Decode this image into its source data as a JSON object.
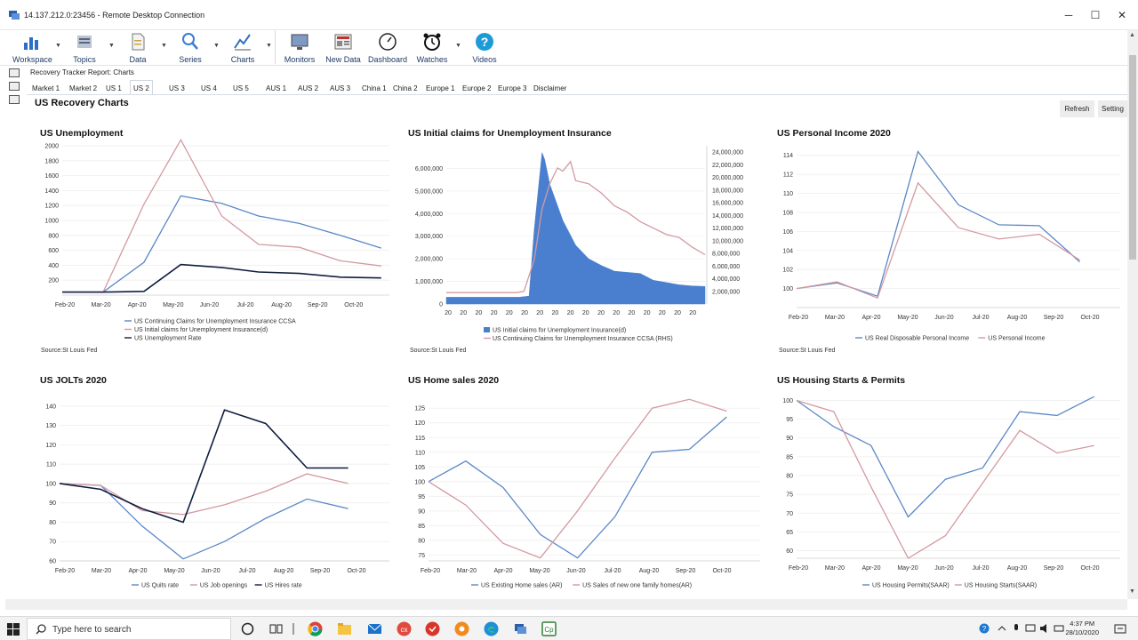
{
  "window": {
    "title": "14.137.212.0:23456 - Remote Desktop Connection",
    "min": "─",
    "max": "☐",
    "close": "✕"
  },
  "ribbon": [
    {
      "label": "Workspace",
      "icon": "workspace-bar-chart-icon",
      "caret": true
    },
    {
      "label": "Topics",
      "icon": "topics-icon",
      "caret": true
    },
    {
      "label": "Data",
      "icon": "data-document-icon",
      "caret": true
    },
    {
      "label": "Series",
      "icon": "series-search-icon",
      "caret": true
    },
    {
      "label": "Charts",
      "icon": "charts-line-icon",
      "caret": true
    },
    {
      "label": "Monitors",
      "icon": "monitors-icon",
      "caret": false
    },
    {
      "label": "New Data",
      "icon": "news-icon",
      "caret": false
    },
    {
      "label": "Dashboard",
      "icon": "dashboard-gauge-icon",
      "caret": false
    },
    {
      "label": "Watches",
      "icon": "alarm-clock-icon",
      "caret": true
    },
    {
      "label": "Videos",
      "icon": "help-question-icon",
      "caret": false
    }
  ],
  "report_title": "Recovery Tracker Report: Charts",
  "tabs": [
    "Market 1",
    "Market 2",
    "US 1",
    "US 2",
    "US 3",
    "US 4",
    "US 5",
    "AUS 1",
    "AUS 2",
    "AUS 3",
    "China 1",
    "China 2",
    "Europe 1",
    "Europe 2",
    "Europe 3",
    "Disclaimer"
  ],
  "active_tab": "US 2",
  "page_title": "US Recovery Charts",
  "buttons": {
    "refresh": "Refresh",
    "settings": "Setting"
  },
  "colors": {
    "blue": "#5b87c6",
    "pink": "#d39aa0",
    "navy": "#0f1d3f",
    "fill": "#4a7fcf"
  },
  "taskbar": {
    "search_placeholder": "Type here to search",
    "time": "4:37 PM",
    "date": "28/10/2020"
  },
  "chart_data": [
    {
      "id": "unemployment",
      "type": "line",
      "title": "US Unemployment",
      "source": "Source:St Louis Fed",
      "x": [
        "Feb-20",
        "Mar-20",
        "Apr-20",
        "May-20",
        "Jun-20",
        "Jul-20",
        "Aug-20",
        "Sep-20",
        "Oct-20"
      ],
      "y_ticks": [
        200,
        400,
        600,
        800,
        1000,
        1200,
        1400,
        1600,
        1800,
        2000
      ],
      "ylim": [
        0,
        2000
      ],
      "series": [
        {
          "name": "US Continuing Claims for Unemployment Insurance CCSA",
          "color": "#5b87c6",
          "x": [
            0,
            1,
            2,
            2.9,
            3.9,
            4.8,
            5.8,
            6.8,
            7.8
          ],
          "values": [
            40,
            40,
            440,
            1330,
            1230,
            1060,
            960,
            800,
            630
          ]
        },
        {
          "name": "US Initial claims for Unemployment Insurance(d)",
          "color": "#d39aa0",
          "x": [
            0,
            1,
            2,
            2.9,
            3.9,
            4.8,
            5.8,
            6.8,
            7.8
          ],
          "values": [
            40,
            40,
            1220,
            2080,
            1060,
            680,
            640,
            460,
            390
          ]
        },
        {
          "name": "US Unemployment Rate",
          "color": "#0f1d3f",
          "x": [
            0,
            1,
            2,
            2.9,
            3.9,
            4.8,
            5.8,
            6.8,
            7.8
          ],
          "values": [
            40,
            40,
            50,
            410,
            370,
            310,
            290,
            240,
            230
          ]
        }
      ]
    },
    {
      "id": "initial_claims",
      "type": "area",
      "title": "US Initial claims for Unemployment Insurance",
      "source": "Source:St Louis Fed",
      "x_ticks": [
        "20",
        "20",
        "20",
        "20",
        "20",
        "20",
        "20",
        "20",
        "20",
        "20",
        "20",
        "20",
        "20",
        "20",
        "20",
        "20",
        "20"
      ],
      "y_ticks": [
        "0",
        "1,000,000",
        "2,000,000",
        "3,000,000",
        "4,000,000",
        "5,000,000",
        "6,000,000"
      ],
      "ylim": [
        0,
        7000000
      ],
      "y2_ticks": [
        "2,000,000",
        "4,000,000",
        "6,000,000",
        "8,000,000",
        "10,000,000",
        "12,000,000",
        "14,000,000",
        "16,000,000",
        "18,000,000",
        "20,000,000",
        "22,000,000",
        "24,000,000"
      ],
      "y2lim": [
        0,
        25000000
      ],
      "series": [
        {
          "name": "US Initial claims for Unemployment Insurance(d)",
          "color": "#4a7fcf",
          "axis": "left",
          "x": [
            0,
            0.28,
            0.32,
            0.34,
            0.37,
            0.38,
            0.4,
            0.45,
            0.5,
            0.55,
            0.6,
            0.65,
            0.7,
            0.75,
            0.8,
            0.85,
            0.9,
            0.95,
            1
          ],
          "values": [
            300000,
            300000,
            350000,
            3300000,
            6700000,
            6400000,
            5300000,
            3700000,
            2600000,
            2000000,
            1700000,
            1450000,
            1400000,
            1350000,
            1050000,
            950000,
            850000,
            800000,
            780000
          ]
        },
        {
          "name": "US Continuing Claims for Unemployment Insurance CCSA (RHS)",
          "color": "#d39aa0",
          "axis": "right",
          "x": [
            0,
            0.27,
            0.3,
            0.34,
            0.37,
            0.4,
            0.43,
            0.45,
            0.48,
            0.5,
            0.55,
            0.6,
            0.65,
            0.7,
            0.75,
            0.8,
            0.85,
            0.9,
            0.95,
            1
          ],
          "values": [
            1800000,
            1800000,
            2000000,
            7000000,
            15000000,
            19000000,
            21500000,
            21000000,
            22500000,
            19500000,
            19000000,
            17500000,
            15500000,
            14500000,
            13000000,
            12000000,
            11000000,
            10500000,
            9000000,
            7800000
          ]
        }
      ]
    },
    {
      "id": "personal_income",
      "type": "line",
      "title": "US Personal Income 2020",
      "source": "Source:St Louis Fed",
      "x": [
        "Feb-20",
        "Mar-20",
        "Apr-20",
        "May-20",
        "Jun-20",
        "Jul-20",
        "Aug-20",
        "Sep-20",
        "Oct-20"
      ],
      "y_ticks": [
        100,
        102,
        104,
        106,
        108,
        110,
        112,
        114
      ],
      "ylim": [
        98,
        115
      ],
      "series": [
        {
          "name": "US Real Disposable Personal Income",
          "color": "#5b87c6",
          "x": [
            0,
            1,
            2,
            3,
            4,
            5,
            6,
            7
          ],
          "values": [
            100,
            100.6,
            99.2,
            114.4,
            108.8,
            106.7,
            106.6,
            102.8
          ]
        },
        {
          "name": "US Personal Income",
          "color": "#d39aa0",
          "x": [
            0,
            1,
            2,
            3,
            4,
            5,
            6,
            7
          ],
          "values": [
            100,
            100.7,
            99.0,
            111.1,
            106.4,
            105.2,
            105.7,
            103.0
          ]
        }
      ]
    },
    {
      "id": "jolts",
      "type": "line",
      "title": "US JOLTs 2020",
      "source": "",
      "x": [
        "Feb-20",
        "Mar-20",
        "Apr-20",
        "May-20",
        "Jun-20",
        "Jul-20",
        "Aug-20",
        "Sep-20",
        "Oct-20"
      ],
      "y_ticks": [
        60,
        70,
        80,
        90,
        100,
        110,
        120,
        130,
        140
      ],
      "ylim": [
        60,
        145
      ],
      "series": [
        {
          "name": "US Quits rate",
          "color": "#5b87c6",
          "x": [
            -1,
            0,
            1,
            2,
            3,
            4,
            5,
            6
          ],
          "values": [
            100,
            99,
            78,
            61,
            70,
            82,
            92,
            87
          ]
        },
        {
          "name": "US Job openings",
          "color": "#d39aa0",
          "x": [
            -1,
            0,
            1,
            2,
            3,
            4,
            5,
            6
          ],
          "values": [
            100,
            99,
            86,
            84,
            89,
            96,
            105,
            100
          ]
        },
        {
          "name": "US Hires rate",
          "color": "#0f1d3f",
          "x": [
            -1,
            0,
            1,
            2,
            3,
            4,
            5,
            6
          ],
          "values": [
            100,
            97,
            87,
            80,
            138,
            131,
            108,
            108
          ]
        }
      ]
    },
    {
      "id": "home_sales",
      "type": "line",
      "title": "US Home sales 2020",
      "source": "",
      "x": [
        "Feb-20",
        "Mar-20",
        "Apr-20",
        "May-20",
        "Jun-20",
        "Jul-20",
        "Aug-20",
        "Sep-20",
        "Oct-20"
      ],
      "y_ticks": [
        75,
        80,
        85,
        90,
        95,
        100,
        105,
        110,
        115,
        120,
        125
      ],
      "ylim": [
        73,
        129
      ],
      "series": [
        {
          "name": "US Existing Home sales (AR)",
          "color": "#5b87c6",
          "x": [
            0,
            1,
            2,
            3,
            4,
            5,
            6,
            7,
            8
          ],
          "values": [
            100,
            107,
            98,
            82,
            74,
            88,
            110,
            111,
            122
          ]
        },
        {
          "name": "US Sales of new one family homes(AR)",
          "color": "#d39aa0",
          "x": [
            0,
            1,
            2,
            3,
            4,
            5,
            6,
            7,
            8
          ],
          "values": [
            100,
            92,
            79,
            74,
            90,
            108,
            125,
            128,
            124
          ]
        }
      ]
    },
    {
      "id": "housing",
      "type": "line",
      "title": "US Housing Starts & Permits",
      "source": "",
      "x": [
        "Feb-20",
        "Mar-20",
        "Apr-20",
        "May-20",
        "Jun-20",
        "Jul-20",
        "Aug-20",
        "Sep-20",
        "Oct-20"
      ],
      "y_ticks": [
        60,
        65,
        70,
        75,
        80,
        85,
        90,
        95,
        100
      ],
      "ylim": [
        58,
        102
      ],
      "series": [
        {
          "name": "US Housing Permits(SAAR)",
          "color": "#5b87c6",
          "x": [
            0,
            1,
            2,
            3,
            4,
            5,
            6,
            7,
            8
          ],
          "values": [
            100,
            93,
            88,
            69,
            79,
            82,
            97,
            96,
            101
          ]
        },
        {
          "name": "US Housing Starts(SAAR)",
          "color": "#d39aa0",
          "x": [
            0,
            1,
            2,
            3,
            4,
            5,
            6,
            7,
            8
          ],
          "values": [
            100,
            97,
            77,
            58,
            64,
            78,
            92,
            86,
            88
          ]
        }
      ]
    }
  ]
}
